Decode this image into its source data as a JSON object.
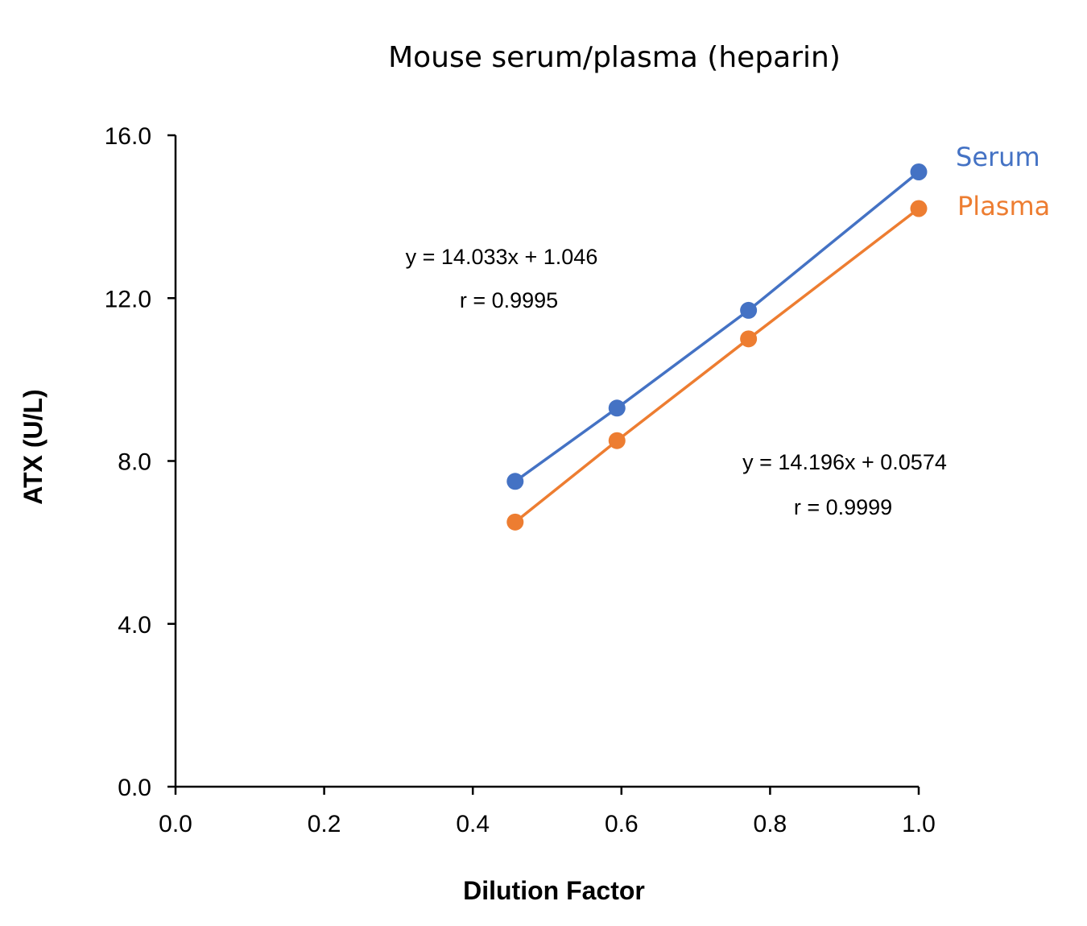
{
  "chart_data": {
    "type": "scatter",
    "title": "Mouse serum/plasma (heparin)",
    "xlabel": "Dilution Factor",
    "ylabel": "ATX (U/L)",
    "xlim": [
      0.0,
      1.0
    ],
    "ylim": [
      0.0,
      16.0
    ],
    "x_ticks": [
      "0.0",
      "0.2",
      "0.4",
      "0.6",
      "0.8",
      "1.0"
    ],
    "y_ticks": [
      "0.0",
      "4.0",
      "8.0",
      "12.0",
      "16.0"
    ],
    "x_tick_values": [
      0.0,
      0.2,
      0.4,
      0.6,
      0.8,
      1.0
    ],
    "y_tick_values": [
      0.0,
      4.0,
      8.0,
      12.0,
      16.0
    ],
    "grid": false,
    "legend": "top-right",
    "series": [
      {
        "name": "Serum",
        "color": "#4472C4",
        "x": [
          0.457,
          0.594,
          0.771,
          1.0
        ],
        "y": [
          7.5,
          9.3,
          11.7,
          15.1
        ],
        "equation": "y = 14.033x + 1.046",
        "r": "r = 0.9995"
      },
      {
        "name": "Plasma",
        "color": "#ED7D31",
        "x": [
          0.457,
          0.594,
          0.771,
          1.0
        ],
        "y": [
          6.5,
          8.5,
          11.0,
          14.2
        ],
        "equation": "y = 14.196x + 0.0574",
        "r": "r = 0.9999"
      }
    ]
  }
}
